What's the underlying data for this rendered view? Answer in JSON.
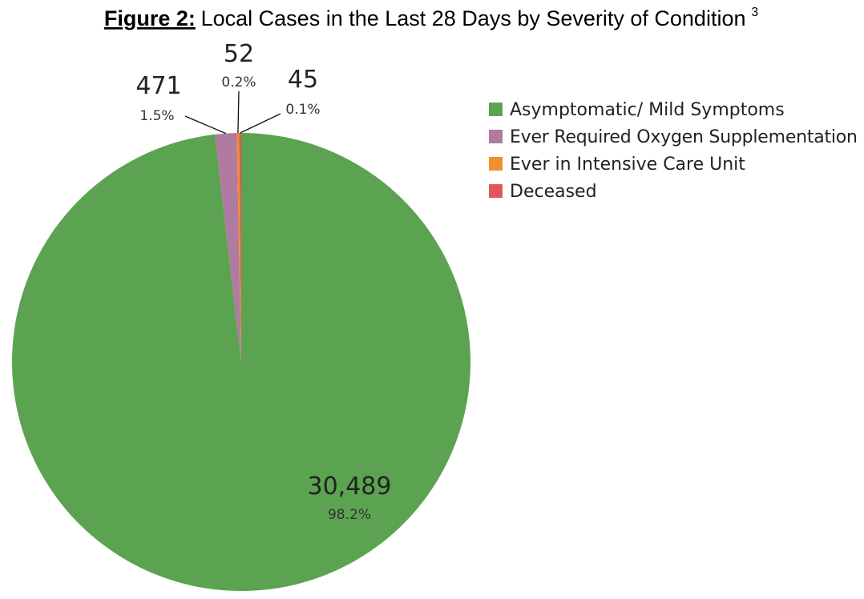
{
  "chart_data": {
    "type": "pie",
    "title_prefix": "Figure 2:",
    "title_text": " Local Cases in the Last 28 Days by Severity of Condition",
    "title_superscript": "3",
    "slices": [
      {
        "name": "Asymptomatic/ Mild Symptoms",
        "value": 30489,
        "value_label": "30,489",
        "percent_label": "98.2%",
        "color": "#5ca351"
      },
      {
        "name": "Ever Required Oxygen Supplementation",
        "value": 471,
        "value_label": "471",
        "percent_label": "1.5%",
        "color": "#b07aa1"
      },
      {
        "name": "Ever in Intensive Care Unit",
        "value": 52,
        "value_label": "52",
        "percent_label": "0.2%",
        "color": "#f28e2b"
      },
      {
        "name": "Deceased",
        "value": 45,
        "value_label": "45",
        "percent_label": "0.1%",
        "color": "#e15759"
      }
    ],
    "legend_position": "top-right"
  }
}
